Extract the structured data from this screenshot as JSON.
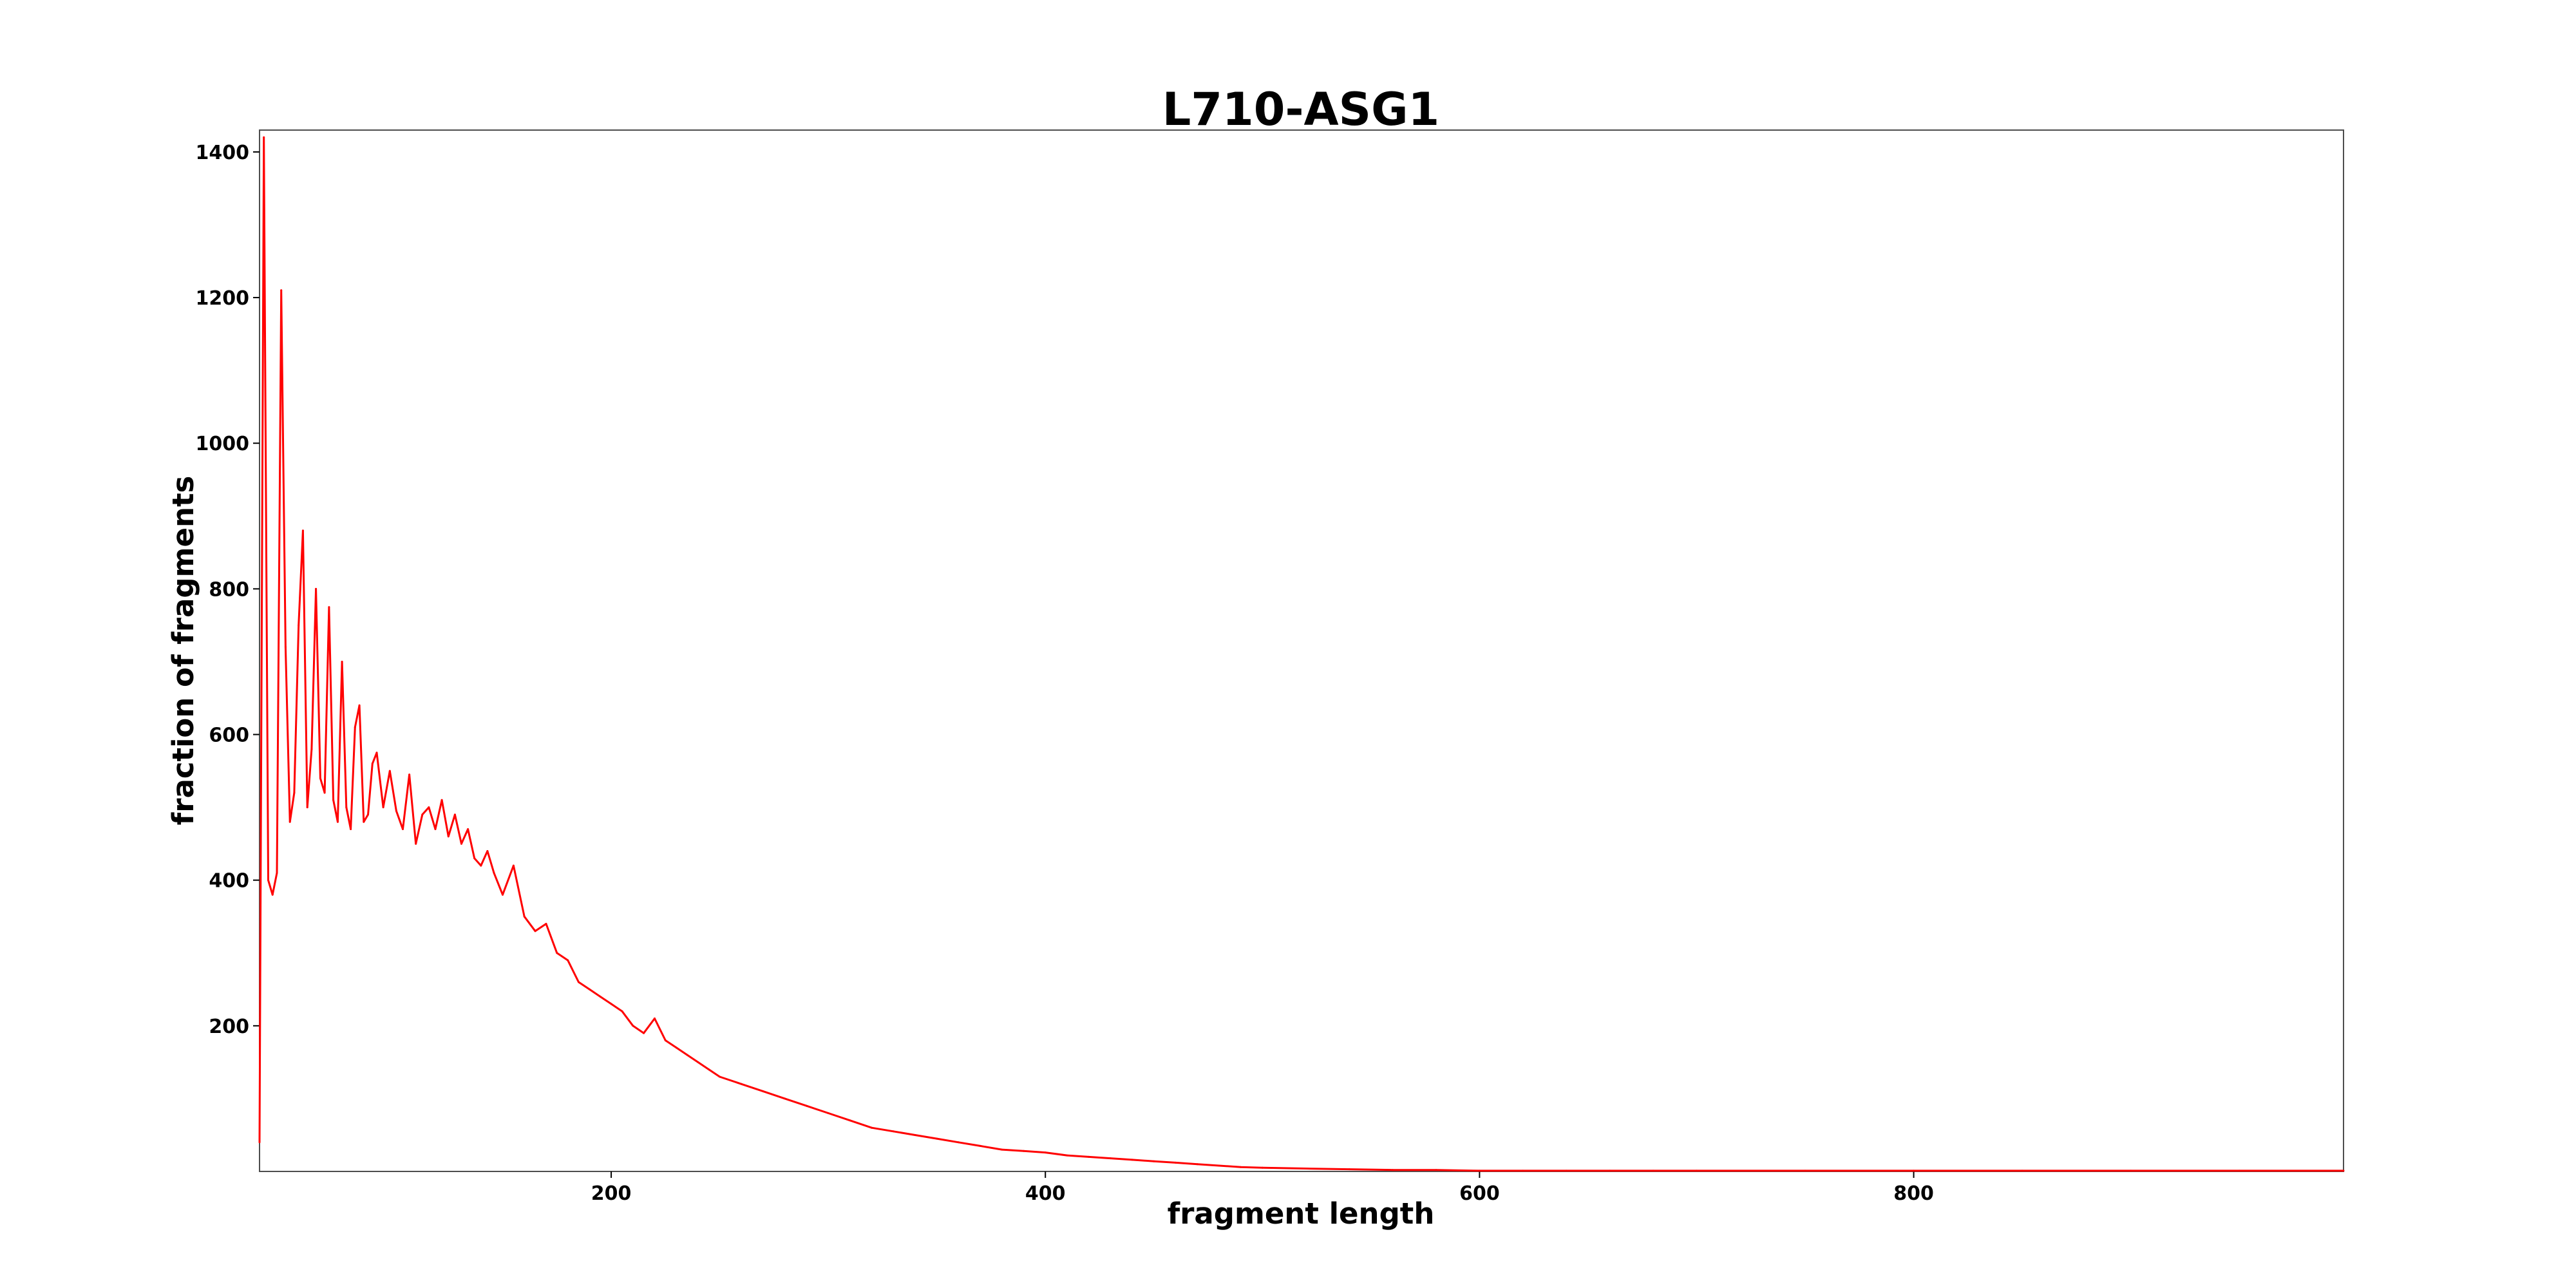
{
  "chart_data": {
    "type": "line",
    "title": "L710-ASG1",
    "xlabel": "fragment length",
    "ylabel": "fraction of fragments",
    "xlim": [
      38,
      998
    ],
    "ylim": [
      0,
      1430
    ],
    "xticks": [
      200,
      400,
      600,
      800
    ],
    "yticks": [
      200,
      400,
      600,
      800,
      1000,
      1200,
      1400
    ],
    "grid": false,
    "legend": "none",
    "series": [
      {
        "color": "#ff0000",
        "x": [
          38,
          40,
          42,
          44,
          46,
          48,
          50,
          52,
          54,
          56,
          58,
          60,
          62,
          64,
          66,
          68,
          70,
          72,
          74,
          76,
          78,
          80,
          82,
          84,
          86,
          88,
          90,
          92,
          95,
          98,
          101,
          104,
          107,
          110,
          113,
          116,
          119,
          122,
          125,
          128,
          131,
          134,
          137,
          140,
          143,
          146,
          150,
          155,
          160,
          165,
          170,
          175,
          180,
          185,
          190,
          195,
          200,
          205,
          210,
          215,
          220,
          225,
          230,
          235,
          240,
          245,
          250,
          260,
          270,
          280,
          290,
          300,
          310,
          320,
          330,
          340,
          350,
          360,
          370,
          380,
          390,
          400,
          410,
          420,
          430,
          440,
          450,
          460,
          470,
          480,
          490,
          500,
          520,
          540,
          560,
          580,
          600,
          620,
          640,
          660,
          680,
          700,
          750,
          800,
          850,
          900,
          950,
          998
        ],
        "y": [
          40,
          1420,
          400,
          380,
          410,
          1210,
          720,
          480,
          520,
          750,
          880,
          500,
          580,
          800,
          540,
          520,
          775,
          510,
          480,
          700,
          500,
          470,
          610,
          640,
          480,
          490,
          560,
          575,
          500,
          550,
          495,
          470,
          545,
          450,
          490,
          500,
          470,
          510,
          460,
          490,
          450,
          470,
          430,
          420,
          440,
          410,
          380,
          420,
          350,
          330,
          340,
          300,
          290,
          260,
          250,
          240,
          230,
          220,
          200,
          190,
          210,
          180,
          170,
          160,
          150,
          140,
          130,
          120,
          110,
          100,
          90,
          80,
          70,
          60,
          55,
          50,
          45,
          40,
          35,
          30,
          28,
          26,
          22,
          20,
          18,
          16,
          14,
          12,
          10,
          8,
          6,
          5,
          4,
          3,
          2,
          2,
          1,
          1,
          1,
          1,
          1,
          1,
          1,
          1,
          1,
          1,
          1,
          1
        ]
      }
    ]
  }
}
